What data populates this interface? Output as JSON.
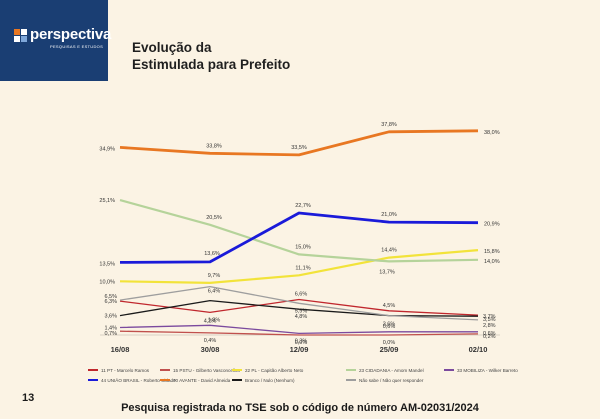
{
  "brand": {
    "name": "perspectiva",
    "tagline": "PESQUISAS E ESTUDOS"
  },
  "title_line1": "Evolução da",
  "title_line2": "Estimulada para Prefeito",
  "page_number": "13",
  "footer": "Pesquisa registrada no TSE sob o código de número AM-02031/2024",
  "chart_data": {
    "type": "line",
    "title": "Evolução da Estimulada para Prefeito",
    "xlabel": "",
    "ylabel": "",
    "ylim": [
      0,
      40
    ],
    "grid": false,
    "legend": "bottom",
    "x": [
      "16/08",
      "30/08",
      "12/09",
      "25/09",
      "02/10"
    ],
    "series": [
      {
        "name": "11 PT - Marcelo Ramos",
        "color": "#c0272d",
        "values": [
          6.3,
          4.2,
          6.6,
          4.5,
          3.7
        ],
        "labels": [
          "6,3%",
          "4,2%",
          "6,6%",
          "4,5%",
          "3,7%"
        ]
      },
      {
        "name": "15 PSTU - Gilberto Vasconcellos",
        "color": "#c0504d",
        "values": [
          0.7,
          0.4,
          0.0,
          0.0,
          0.2
        ],
        "labels": [
          "0,7%",
          "0,4%",
          "0,0%",
          "0,0%",
          "0,2%"
        ]
      },
      {
        "name": "22 PL - Capitão Alberto Neto",
        "color": "#f2e33a",
        "values": [
          10.0,
          9.7,
          11.1,
          14.4,
          15.8
        ],
        "labels": [
          "10,0%",
          "9,7%",
          "11,1%",
          "14,4%",
          "15,8%"
        ]
      },
      {
        "name": "23 CIDADANIA - Amom Mandel",
        "color": "#b5d39a",
        "values": [
          25.1,
          20.5,
          15.0,
          13.7,
          14.0
        ],
        "labels": [
          "25,1%",
          "20,5%",
          "15,0%",
          "13,7%",
          "14,0%"
        ]
      },
      {
        "name": "33 MOBILIZA - Wilker Barreto",
        "color": "#7b4a9e",
        "values": [
          1.4,
          1.8,
          0.3,
          0.6,
          0.6
        ],
        "labels": [
          "1,4%",
          "1,8%",
          "0,3%",
          "0,6%",
          "0,6%"
        ]
      },
      {
        "name": "44 UNIÃO BRASIL - Roberto Cidade",
        "color": "#1a1ad9",
        "values": [
          13.5,
          13.6,
          22.7,
          21.0,
          20.9
        ],
        "labels": [
          "13,5%",
          "13,6%",
          "22,7%",
          "21,0%",
          "20,9%"
        ]
      },
      {
        "name": "70 AVANTE - David Almeida",
        "color": "#e87722",
        "values": [
          34.9,
          33.8,
          33.5,
          37.8,
          38.0
        ],
        "labels": [
          "34,9%",
          "33,8%",
          "33,5%",
          "37,8%",
          "38,0%"
        ]
      },
      {
        "name": "Branco / Nulo (Nenhum)",
        "color": "#1a1a1a",
        "values": [
          3.6,
          6.4,
          4.8,
          3.6,
          3.5
        ],
        "labels": [
          "3,6%",
          "6,4%",
          "4,8%",
          "3,6%",
          "3,5%"
        ]
      },
      {
        "name": "Não sabe / Não quer responder",
        "color": "#9e9e9e",
        "values": [
          6.5,
          9.0,
          5.9,
          3.6,
          2.8
        ],
        "labels": [
          "6,5%",
          "",
          "5,9%",
          "",
          "2,8%"
        ]
      }
    ]
  }
}
